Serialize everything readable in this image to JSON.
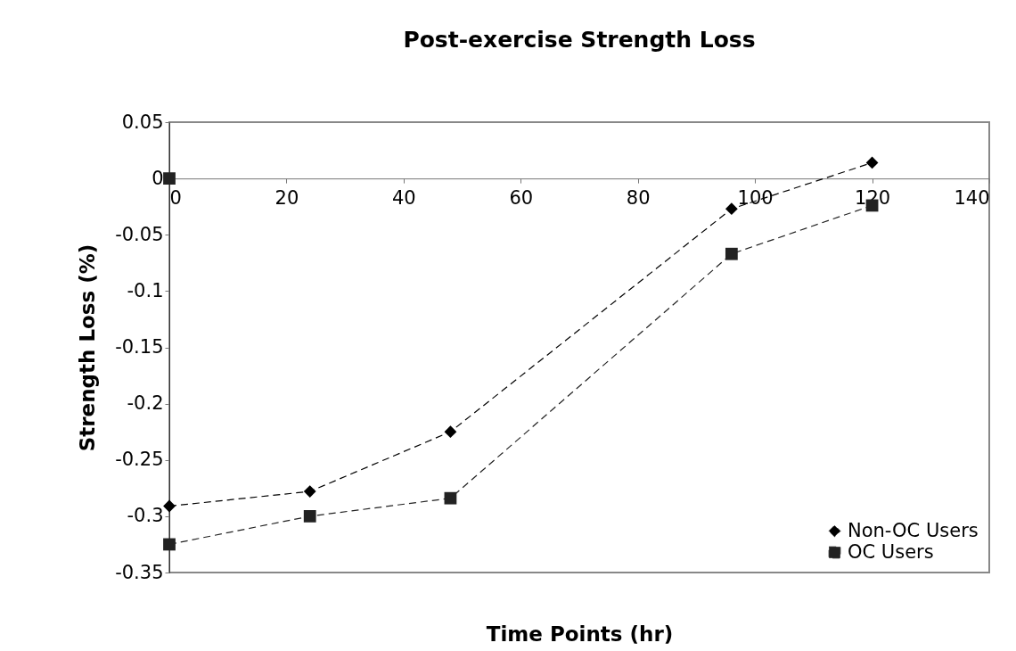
{
  "chart_data": {
    "type": "line",
    "title": "Post-exercise Strength Loss",
    "xlabel": "Time Points (hr)",
    "ylabel": "Strength Loss (%)",
    "x": [
      0,
      24,
      48,
      96,
      120
    ],
    "series": [
      {
        "name": "Non-OC Users",
        "color": "#000000",
        "marker": "diamond",
        "line_style": "dashed",
        "values": [
          -0.291,
          -0.278,
          -0.225,
          -0.027,
          0.014
        ]
      },
      {
        "name": "OC Users",
        "color": "#222222",
        "marker": "square",
        "line_style": "dashed",
        "values": [
          -0.325,
          -0.3,
          -0.284,
          -0.067,
          -0.024
        ]
      },
      {
        "type": "scatter",
        "color": "#222222",
        "marker": "square",
        "x": [
          0
        ],
        "values": [
          0
        ]
      }
    ],
    "xlim": [
      0,
      140
    ],
    "xticks": [
      0,
      20,
      40,
      60,
      80,
      100,
      120,
      140
    ],
    "ylim": [
      -0.35,
      0.05
    ],
    "yticks": [
      -0.35,
      -0.3,
      -0.25,
      -0.2,
      -0.15,
      -0.1,
      -0.05,
      0,
      0.05
    ],
    "grid": false,
    "legend": "bottom right"
  }
}
